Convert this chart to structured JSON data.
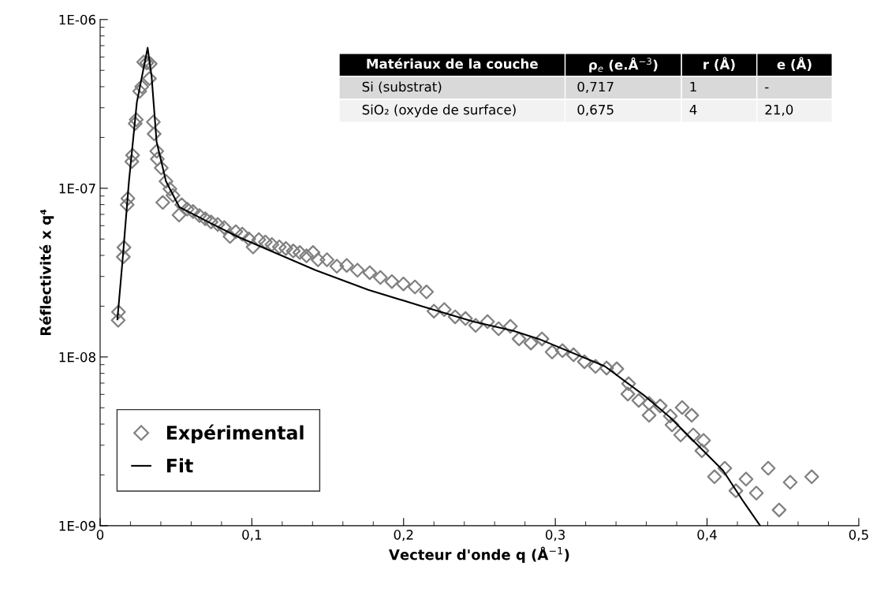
{
  "chart_data": {
    "type": "scatter",
    "xlabel": "Vecteur d'onde q (Å$^{−1}$)",
    "ylabel": "Réflectivité x q⁴",
    "log": "y",
    "grid": false,
    "legend": "bottom left",
    "xlim": [
      0,
      0.5
    ],
    "xticks": [
      0,
      {
        "value": 0.1,
        "label": "0,1"
      },
      {
        "value": 0.2,
        "label": "0,2"
      },
      {
        "value": 0.3,
        "label": "0,3"
      },
      {
        "value": 0.4,
        "label": "0,4"
      },
      {
        "value": 0.5,
        "label": "0,5"
      }
    ],
    "ylim": [
      1e-09,
      1e-06
    ],
    "yticks": [
      {
        "value": 1e-09,
        "label": "1E-09"
      },
      {
        "value": 1e-08,
        "label": "1E-08"
      },
      {
        "value": 1e-07,
        "label": "1E-07"
      },
      {
        "value": 1e-06,
        "label": "1E-06"
      }
    ],
    "annotations": [
      "Matériaux de la couche",
      "ρ$_{e}$ (e.Å$^{−3}$)",
      "r (Å)",
      "e (Å)",
      "Si (substrat)",
      "0,717",
      "1",
      "-",
      "SiO₂ (oxyde de surface)",
      "0,675",
      "4",
      "21,0"
    ],
    "series": [
      {
        "name": "Expérimental",
        "marker": "diamond",
        "color": "#808080",
        "x": [
          0.0119,
          0.0121,
          0.0153,
          0.0157,
          0.0178,
          0.0183,
          0.0209,
          0.0214,
          0.0231,
          0.0238,
          0.0261,
          0.0274,
          0.0287,
          0.0307,
          0.033,
          0.0325,
          0.0351,
          0.0356,
          0.0373,
          0.0377,
          0.0403,
          0.0413,
          0.0434,
          0.046,
          0.048,
          0.052,
          0.0538,
          0.0574,
          0.0612,
          0.0655,
          0.0693,
          0.0731,
          0.0775,
          0.0818,
          0.0856,
          0.0894,
          0.0937,
          0.098,
          0.1008,
          0.1046,
          0.1089,
          0.1132,
          0.1181,
          0.1224,
          0.1273,
          0.1316,
          0.136,
          0.1403,
          0.1436,
          0.1495,
          0.156,
          0.1625,
          0.1696,
          0.1777,
          0.1847,
          0.1923,
          0.1999,
          0.2075,
          0.2151,
          0.22,
          0.2268,
          0.234,
          0.2408,
          0.2475,
          0.2553,
          0.2626,
          0.2704,
          0.2761,
          0.2839,
          0.2912,
          0.2979,
          0.3047,
          0.312,
          0.3192,
          0.3265,
          0.3338,
          0.3405,
          0.3483,
          0.3478,
          0.355,
          0.3618,
          0.3618,
          0.3691,
          0.3758,
          0.3769,
          0.3826,
          0.3836,
          0.3899,
          0.3909,
          0.3977,
          0.3966,
          0.4049,
          0.4117,
          0.419,
          0.4257,
          0.4325,
          0.4403,
          0.4475,
          0.4548,
          0.469
        ],
        "values": [
          1.65e-08,
          1.85e-08,
          3.92e-08,
          4.46e-08,
          7.98e-08,
          8.7e-08,
          1.44e-07,
          1.57e-07,
          2.42e-07,
          2.55e-07,
          3.76e-07,
          4e-07,
          5.6e-07,
          5.53e-07,
          5.47e-07,
          4.47e-07,
          2.47e-07,
          2.1e-07,
          1.66e-07,
          1.49e-07,
          1.32e-07,
          8.24e-08,
          1.1e-07,
          9.9e-08,
          9.08e-08,
          6.94e-08,
          7.98e-08,
          7.52e-08,
          7.28e-08,
          6.89e-08,
          6.59e-08,
          6.31e-08,
          6.1e-08,
          5.85e-08,
          5.18e-08,
          5.53e-08,
          5.35e-08,
          5.01e-08,
          4.49e-08,
          4.96e-08,
          4.8e-08,
          4.64e-08,
          4.49e-08,
          4.4e-08,
          4.25e-08,
          4.16e-08,
          3.98e-08,
          4.16e-08,
          3.77e-08,
          3.77e-08,
          3.45e-08,
          3.49e-08,
          3.27e-08,
          3.16e-08,
          2.96e-08,
          2.8e-08,
          2.71e-08,
          2.6e-08,
          2.43e-08,
          1.87e-08,
          1.91e-08,
          1.73e-08,
          1.69e-08,
          1.54e-08,
          1.62e-08,
          1.47e-08,
          1.52e-08,
          1.28e-08,
          1.21e-08,
          1.28e-08,
          1.07e-08,
          1.09e-08,
          1.03e-08,
          9.37e-09,
          8.79e-09,
          8.6e-09,
          8.51e-09,
          6.94e-09,
          6.03e-09,
          5.53e-09,
          5.3e-09,
          4.51e-09,
          5.13e-09,
          4.47e-09,
          3.96e-09,
          3.45e-09,
          5.02e-09,
          4.51e-09,
          3.45e-09,
          3.2e-09,
          2.78e-09,
          1.95e-09,
          2.19e-09,
          1.61e-09,
          1.89e-09,
          1.56e-09,
          2.19e-09,
          1.24e-09,
          1.81e-09,
          1.95e-09
        ]
      },
      {
        "name": "Fit",
        "type": "line",
        "marker": "none",
        "line_style": "solid",
        "color": "#000000",
        "x": [
          0.0114,
          0.0148,
          0.019,
          0.0242,
          0.0313,
          0.0339,
          0.0372,
          0.0434,
          0.0522,
          0.07,
          0.0901,
          0.142,
          0.1768,
          0.2112,
          0.246,
          0.272,
          0.289,
          0.3327,
          0.3587,
          0.3758,
          0.393,
          0.4106,
          0.4242,
          0.435
        ],
        "values": [
          1.67e-08,
          3.76e-08,
          1.1e-07,
          3.23e-07,
          6.8e-07,
          4.63e-07,
          1.89e-07,
          1.1e-07,
          7.73e-08,
          6.4e-08,
          5.19e-08,
          3.27e-08,
          2.5e-08,
          2.01e-08,
          1.62e-08,
          1.43e-08,
          1.28e-08,
          8.8e-09,
          5.9e-09,
          4.37e-09,
          3.06e-09,
          2.12e-09,
          1.38e-09,
          1e-09
        ]
      }
    ]
  }
}
